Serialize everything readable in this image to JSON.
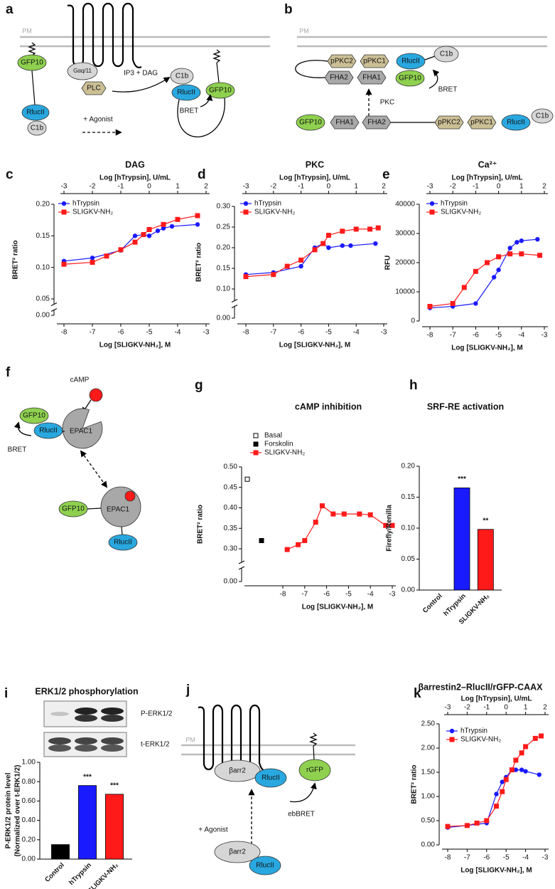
{
  "chart_data": [
    {
      "type": "line",
      "panel": "c",
      "title": "DAG",
      "xlabel": "Log [SLIGKV-NH₂], M",
      "x2label": "Log [hTrypsin], U/mL",
      "ylabel": "BRET² ratio",
      "xlim": [
        -8,
        -3
      ],
      "xticks": [
        -8,
        -7,
        -6,
        -5,
        -4,
        -3
      ],
      "x2lim": [
        -3,
        2
      ],
      "x2ticks": [
        -3,
        -2,
        -1,
        0,
        1,
        2
      ],
      "ylim": [
        0,
        0.2
      ],
      "yticks": [
        {
          "value": 0,
          "label": "0.00"
        },
        {
          "value": 0.05,
          "label": "0.05"
        },
        {
          "value": 0.1,
          "label": "0.10"
        },
        {
          "value": 0.15,
          "label": "0.15"
        },
        {
          "value": 0.2,
          "label": "0.20"
        }
      ],
      "series": [
        {
          "name": "hTrypsin",
          "color": "#1a1aff",
          "marker": "circle",
          "axis": "x2",
          "x": [
            -3,
            -2,
            -1,
            -0.5,
            -0.2,
            0,
            0.3,
            0.5,
            0.8,
            1.7
          ],
          "values": [
            0.11,
            0.115,
            0.127,
            0.15,
            0.152,
            0.15,
            0.158,
            0.162,
            0.165,
            0.168
          ]
        },
        {
          "name": "SLIGKV-NH₂",
          "color": "#ff1a1a",
          "marker": "square",
          "x": [
            -8,
            -7,
            -6.5,
            -6,
            -5.5,
            -5.2,
            -5,
            -4.5,
            -4,
            -3.3
          ],
          "values": [
            0.105,
            0.108,
            0.118,
            0.128,
            0.14,
            0.152,
            0.16,
            0.168,
            0.176,
            0.182
          ]
        }
      ]
    },
    {
      "type": "line",
      "panel": "d",
      "title": "PKC",
      "xlabel": "Log [SLIGKV-NH₂], M",
      "x2label": "Log [hTrypsin], U/mL",
      "ylabel": "BRET² ratio",
      "xlim": [
        -8,
        -3
      ],
      "xticks": [
        -8,
        -7,
        -6,
        -5,
        -4,
        -3
      ],
      "x2lim": [
        -3,
        2
      ],
      "x2ticks": [
        -3,
        -2,
        -1,
        0,
        1,
        2
      ],
      "ylim": [
        0,
        0.3
      ],
      "yticks": [
        {
          "value": 0,
          "label": "0.00"
        },
        {
          "value": 0.1,
          "label": "0.10"
        },
        {
          "value": 0.15,
          "label": "0.15"
        },
        {
          "value": 0.2,
          "label": "0.20"
        },
        {
          "value": 0.25,
          "label": "0.25"
        },
        {
          "value": 0.3,
          "label": "0.30"
        }
      ],
      "series": [
        {
          "name": "hTrypsin",
          "color": "#1a1aff",
          "marker": "circle",
          "axis": "x2",
          "x": [
            -3,
            -2,
            -1,
            -0.5,
            -0.2,
            0,
            0.5,
            0.8,
            1.7
          ],
          "values": [
            0.135,
            0.14,
            0.155,
            0.2,
            0.21,
            0.2,
            0.205,
            0.205,
            0.21
          ]
        },
        {
          "name": "SLIGKV-NH₂",
          "color": "#ff1a1a",
          "marker": "square",
          "x": [
            -8,
            -7,
            -6.5,
            -6,
            -5.5,
            -5.2,
            -5,
            -4.5,
            -4,
            -3.5,
            -3.2
          ],
          "values": [
            0.13,
            0.135,
            0.155,
            0.17,
            0.195,
            0.21,
            0.23,
            0.24,
            0.245,
            0.245,
            0.248
          ]
        }
      ]
    },
    {
      "type": "line",
      "panel": "e",
      "title": "Ca²⁺",
      "xlabel": "Log [SLIGKV-NH₂], M",
      "x2label": "Log [hTrypsin], U/mL",
      "ylabel": "RFU",
      "xlim": [
        -8,
        -3
      ],
      "xticks": [
        -8,
        -7,
        -6,
        -5,
        -4,
        -3
      ],
      "x2lim": [
        -3,
        2
      ],
      "x2ticks": [
        -3,
        -2,
        -1,
        0,
        1,
        2
      ],
      "ylim": [
        0,
        40000
      ],
      "yticks": [
        0,
        10000,
        20000,
        30000,
        40000
      ],
      "series": [
        {
          "name": "hTrypsin",
          "color": "#1a1aff",
          "marker": "circle",
          "axis": "x2",
          "x": [
            -3,
            -2,
            -1,
            -0.2,
            0,
            0.5,
            0.8,
            1,
            1.7
          ],
          "values": [
            4500,
            5000,
            6000,
            15000,
            17500,
            25000,
            27000,
            27500,
            28000
          ]
        },
        {
          "name": "SLIGKV-NH₂",
          "color": "#ff1a1a",
          "marker": "square",
          "x": [
            -8,
            -7,
            -6.5,
            -6,
            -5.5,
            -5,
            -4.5,
            -4,
            -3.2
          ],
          "values": [
            5000,
            6000,
            11500,
            17000,
            20000,
            22000,
            23000,
            23000,
            22500
          ]
        }
      ]
    },
    {
      "type": "line",
      "panel": "g",
      "title": "cAMP inhibition",
      "xlabel": "Log [SLIGKV-NH₂], M",
      "ylabel": "BRET² ratio",
      "xlim": [
        -8,
        -3
      ],
      "xticks": [
        -8,
        -7,
        -6,
        -5,
        -4,
        -3
      ],
      "ylim": [
        0,
        0.5
      ],
      "yticks": [
        {
          "value": 0,
          "label": "0.00"
        },
        {
          "value": 0.3,
          "label": "0.30"
        },
        {
          "value": 0.35,
          "label": "0.35"
        },
        {
          "value": 0.4,
          "label": "0.40"
        },
        {
          "value": 0.45,
          "label": "0.45"
        },
        {
          "value": 0.5,
          "label": "0.50"
        }
      ],
      "series": [
        {
          "name": "Basal",
          "color": "#000000",
          "marker": "open-square",
          "values": [
            0.47
          ]
        },
        {
          "name": "Forskolin",
          "color": "#000000",
          "marker": "square",
          "values": [
            0.32
          ]
        },
        {
          "name": "SLIGKV-NH₂",
          "color": "#ff1a1a",
          "marker": "square",
          "x": [
            -7.8,
            -7.3,
            -7,
            -6.5,
            -6.2,
            -5.7,
            -5.2,
            -4.5,
            -4,
            -3.3,
            -3
          ],
          "values": [
            0.293,
            0.31,
            0.32,
            0.365,
            0.405,
            0.385,
            0.385,
            0.385,
            0.383,
            0.357,
            0.357
          ]
        }
      ]
    },
    {
      "type": "bar",
      "panel": "h",
      "title": "SRF-RE activation",
      "ylabel": "Firefly/Renilla",
      "categories": [
        "Control",
        "hTrypsin",
        "SLIGKV-NH₂"
      ],
      "values": [
        0,
        0.165,
        0.098
      ],
      "colors": [
        "#000000",
        "#1a1aff",
        "#ff1a1a"
      ],
      "annotations": [
        null,
        "***",
        "**"
      ],
      "ylim": [
        0,
        0.2
      ],
      "yticks": [
        {
          "value": 0,
          "label": "0.00"
        },
        {
          "value": 0.05,
          "label": "0.05"
        },
        {
          "value": 0.1,
          "label": "0.10"
        },
        {
          "value": 0.15,
          "label": "0.15"
        },
        {
          "value": 0.2,
          "label": "0.20"
        }
      ]
    },
    {
      "type": "bar",
      "panel": "i",
      "title": "ERK1/2 phosphorylation",
      "ylabel": [
        "P-ERK1/2 protein level",
        "(Normalized over t-ERK1/2)"
      ],
      "blot_labels": [
        "P-ERK1/2",
        "t-ERK1/2"
      ],
      "categories": [
        "Control",
        "hTrypsin",
        "SLIGKV-NH₂"
      ],
      "values": [
        0.15,
        0.76,
        0.67
      ],
      "colors": [
        "#000000",
        "#1a1aff",
        "#ff1a1a"
      ],
      "annotations": [
        null,
        "***",
        "***"
      ],
      "ylim": [
        0,
        1
      ],
      "yticks": [
        {
          "value": 0,
          "label": "0.00"
        },
        {
          "value": 0.2,
          "label": "0.20"
        },
        {
          "value": 0.4,
          "label": "0.40"
        },
        {
          "value": 0.6,
          "label": "0.60"
        },
        {
          "value": 0.8,
          "label": "0.80"
        },
        {
          "value": 1,
          "label": "1.00"
        }
      ]
    },
    {
      "type": "line",
      "panel": "k",
      "title": "βarrestin2–RlucII/rGFP-CAAX",
      "xlabel": "Log [SLIGKV-NH₂], M",
      "x2label": "Log [hTrypsin], U/mL",
      "ylabel": "BRET² ratio",
      "xlim": [
        -8,
        -3
      ],
      "xticks": [
        -8,
        -7,
        -6,
        -5,
        -4,
        -3
      ],
      "x2lim": [
        -3,
        2
      ],
      "x2ticks": [
        -3,
        -2,
        -1,
        0,
        1,
        2
      ],
      "ylim": [
        0,
        2.5
      ],
      "yticks": [
        {
          "value": 0,
          "label": "0.00"
        },
        {
          "value": 0.5,
          "label": "0.50"
        },
        {
          "value": 1,
          "label": "1.00"
        },
        {
          "value": 1.5,
          "label": "1.50"
        },
        {
          "value": 2,
          "label": "2.00"
        },
        {
          "value": 2.5,
          "label": "2.50"
        }
      ],
      "series": [
        {
          "name": "hTrypsin",
          "color": "#1a1aff",
          "marker": "circle",
          "axis": "x2",
          "x": [
            -3,
            -2,
            -1,
            -0.5,
            -0.2,
            0,
            0.3,
            0.5,
            0.8,
            1,
            1.7
          ],
          "values": [
            0.36,
            0.4,
            0.45,
            1.05,
            1.3,
            1.4,
            1.55,
            1.55,
            1.55,
            1.52,
            1.45
          ]
        },
        {
          "name": "SLIGKV-NH₂",
          "color": "#ff1a1a",
          "marker": "square",
          "x": [
            -8,
            -7,
            -6.5,
            -6,
            -5.5,
            -5.2,
            -5,
            -4.7,
            -4.5,
            -4.2,
            -4,
            -3.5,
            -3.2
          ],
          "values": [
            0.38,
            0.4,
            0.45,
            0.5,
            0.8,
            1.1,
            1.35,
            1.55,
            1.75,
            1.9,
            2.03,
            2.2,
            2.25
          ]
        }
      ]
    }
  ],
  "diagrams": {
    "a": {
      "letter": "a",
      "labels": [
        "PM",
        "GFP10",
        "RlucII",
        "C1b",
        "Gαq/11",
        "PLC",
        "IP3 + DAG",
        "+ Agonist",
        "C1b",
        "RlucII",
        "GFP10",
        "BRET"
      ]
    },
    "b": {
      "letter": "b",
      "labels": [
        "PM",
        "pPKC2",
        "pPKC1",
        "RlucII",
        "C1b",
        "FHA2",
        "FHA1",
        "GFP10",
        "BRET",
        "PKC",
        "GFP10",
        "FHA1",
        "FHA2",
        "pPKC2",
        "pPKC1",
        "RlucII",
        "C1b"
      ]
    },
    "f": {
      "letter": "f",
      "labels": [
        "cAMP",
        "GFP10",
        "EPAC1",
        "RlucII",
        "BRET",
        "GFP10",
        "EPAC1",
        "RlucII"
      ]
    },
    "j": {
      "letter": "j",
      "labels": [
        "PM",
        "βarr2",
        "RlucII",
        "rGFP",
        "ebBRET",
        "+ Agonist",
        "βarr2",
        "RlucII"
      ]
    }
  }
}
